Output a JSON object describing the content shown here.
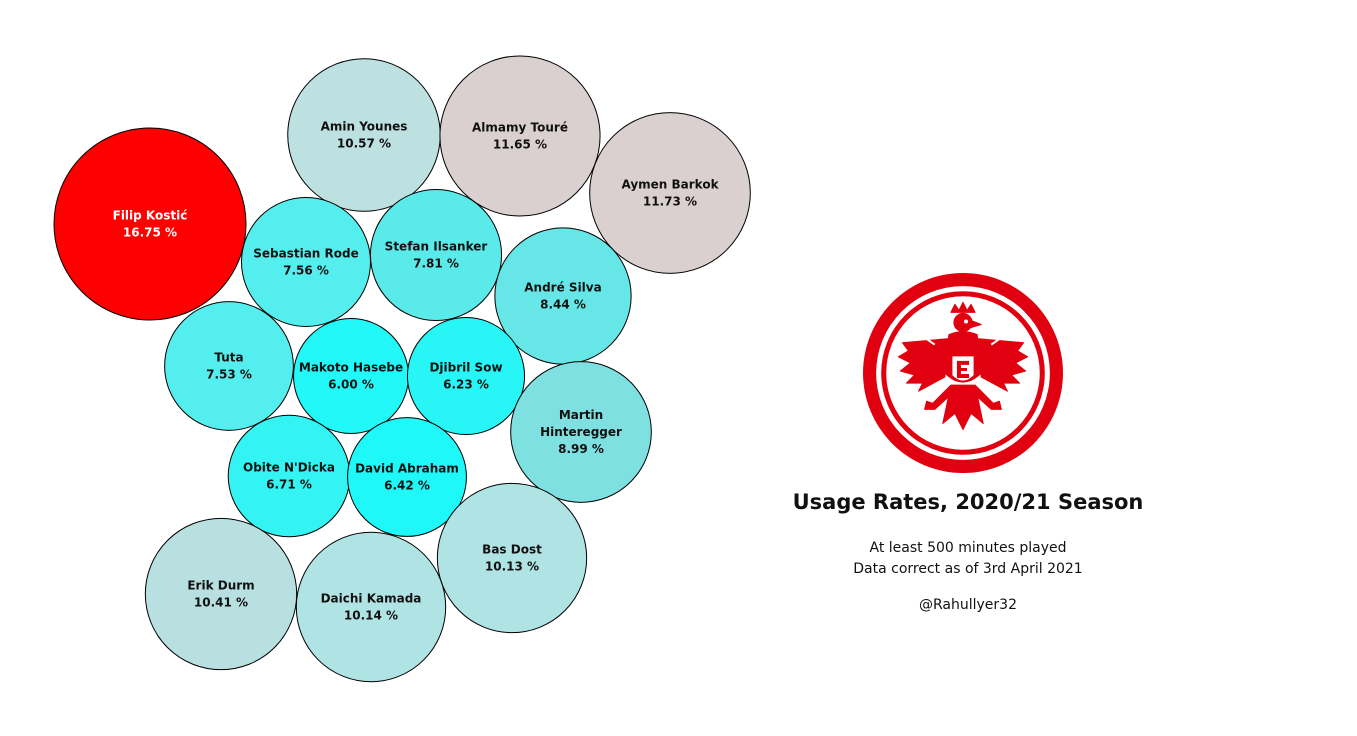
{
  "chart_data": {
    "type": "bubble",
    "title": "Usage Rates, 2020/21 Season",
    "subtitle_lines": [
      "At least 500 minutes played",
      "Data correct as of 3rd April 2021"
    ],
    "credit": "@Rahullyer32",
    "unit": "%",
    "players": [
      {
        "name": "Filip Kostić",
        "value": 16.75,
        "label": "16.75 %",
        "color": "#ff0000"
      },
      {
        "name": "Amin Younes",
        "value": 10.57,
        "label": "10.57 %",
        "color": "#bde0e0"
      },
      {
        "name": "Almamy Touré",
        "value": 11.65,
        "label": "11.65 %",
        "color": "#dbd0d0"
      },
      {
        "name": "Aymen Barkok",
        "value": 11.73,
        "label": "11.73 %",
        "color": "#dbd0d0"
      },
      {
        "name": "Sebastian Rode",
        "value": 7.56,
        "label": "7.56 %",
        "color": "#55eeee"
      },
      {
        "name": "Stefan Ilsanker",
        "value": 7.81,
        "label": "7.81 %",
        "color": "#5aeaea"
      },
      {
        "name": "André Silva",
        "value": 8.44,
        "label": "8.44 %",
        "color": "#66e6e6"
      },
      {
        "name": "Tuta",
        "value": 7.53,
        "label": "7.53 %",
        "color": "#55eeee"
      },
      {
        "name": "Makoto Hasebe",
        "value": 6.0,
        "label": "6.00 %",
        "color": "#22f8f8"
      },
      {
        "name": "Djibril Sow",
        "value": 6.23,
        "label": "6.23 %",
        "color": "#28f5f5"
      },
      {
        "name": "Martin Hinteregger",
        "value": 8.99,
        "label": "8.99 %",
        "color": "#7ee0e0"
      },
      {
        "name": "Obite N'Dicka",
        "value": 6.71,
        "label": "6.71 %",
        "color": "#33f3f3"
      },
      {
        "name": "David Abraham",
        "value": 6.42,
        "label": "6.42 %",
        "color": "#1ff8f8"
      },
      {
        "name": "Bas Dost",
        "value": 10.13,
        "label": "10.13 %",
        "color": "#b0e3e3"
      },
      {
        "name": "Erik Durm",
        "value": 10.41,
        "label": "10.41 %",
        "color": "#b8e0e0"
      },
      {
        "name": "Daichi Kamada",
        "value": 10.14,
        "label": "10.14 %",
        "color": "#b0e3e3"
      }
    ]
  },
  "logo": {
    "name": "club crest",
    "ring_color": "#e1000f"
  }
}
